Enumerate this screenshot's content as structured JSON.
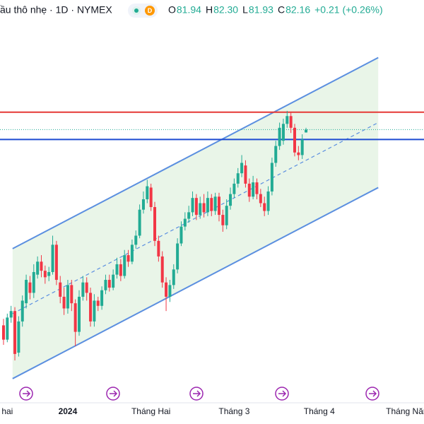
{
  "header": {
    "title": "ầu thô nhẹ · 1D · NYMEX",
    "badge": "D",
    "ohlc": [
      {
        "label": "O",
        "value": "81.94"
      },
      {
        "label": "H",
        "value": "82.30"
      },
      {
        "label": "L",
        "value": "81.93"
      },
      {
        "label": "C",
        "value": "82.16"
      }
    ],
    "change": "+0.21 (+0.26%)"
  },
  "chart_data": {
    "type": "candlestick",
    "open": [
      67.1,
      66.0,
      67.7,
      68.2,
      65.0,
      67.4,
      68.8,
      70.4,
      69.6,
      71.0,
      72.0,
      71.3,
      70.9,
      71.2,
      73.3,
      70.4,
      69.3,
      68.4,
      70.2,
      68.8,
      66.6,
      69.3,
      70.4,
      69.6,
      67.4,
      69.0,
      68.6,
      69.8,
      70.6,
      70.0,
      71.0,
      71.8,
      70.9,
      72.5,
      72.0,
      73.3,
      74.0,
      76.0,
      76.8,
      77.7,
      76.2,
      73.6,
      72.4,
      70.4,
      69.3,
      70.2,
      71.4,
      73.4,
      74.7,
      75.3,
      75.8,
      76.9,
      75.6,
      76.5,
      75.8,
      76.9,
      75.9,
      77.0,
      75.6,
      74.8,
      76.3,
      77.2,
      78.0,
      78.8,
      79.4,
      78.0,
      77.0,
      78.1,
      77.2,
      76.5,
      75.9,
      77.4,
      79.6,
      80.9,
      81.3,
      82.6,
      83.2,
      82.3,
      80.4,
      80.2,
      81.94
    ],
    "high": [
      67.6,
      68.0,
      68.6,
      68.5,
      67.8,
      69.4,
      71.0,
      70.9,
      71.8,
      72.4,
      72.5,
      71.7,
      71.6,
      74.0,
      73.6,
      70.9,
      70.0,
      70.6,
      70.6,
      69.1,
      69.8,
      70.9,
      70.8,
      70.0,
      69.5,
      69.3,
      70.1,
      71.0,
      71.0,
      71.4,
      72.3,
      72.2,
      72.9,
      72.9,
      73.7,
      74.4,
      76.4,
      77.4,
      78.3,
      78.0,
      76.6,
      74.0,
      72.8,
      70.8,
      70.6,
      71.8,
      73.8,
      75.1,
      75.8,
      76.3,
      77.4,
      77.2,
      77.0,
      77.2,
      77.4,
      77.2,
      77.3,
      77.3,
      76.0,
      76.8,
      77.7,
      78.4,
      79.2,
      80.2,
      79.8,
      78.4,
      78.6,
      78.4,
      77.6,
      77.0,
      77.8,
      80.0,
      81.3,
      82.7,
      83.0,
      83.6,
      83.5,
      82.6,
      80.9,
      81.8,
      82.3
    ],
    "low": [
      65.6,
      65.8,
      67.3,
      64.4,
      64.7,
      67.0,
      68.4,
      69.1,
      69.2,
      70.7,
      70.8,
      70.3,
      70.5,
      71.0,
      70.2,
      68.8,
      67.9,
      68.0,
      68.2,
      65.5,
      66.3,
      69.0,
      69.0,
      67.0,
      67.0,
      68.2,
      68.3,
      69.5,
      69.7,
      69.8,
      70.7,
      70.5,
      70.7,
      71.6,
      71.8,
      73.0,
      73.8,
      75.7,
      76.5,
      75.9,
      73.2,
      72.0,
      70.0,
      68.2,
      68.9,
      69.9,
      71.1,
      73.2,
      74.4,
      75.0,
      75.5,
      75.2,
      75.3,
      75.4,
      75.5,
      75.5,
      75.6,
      75.1,
      74.3,
      74.5,
      76.0,
      76.9,
      77.7,
      78.5,
      77.7,
      76.6,
      76.8,
      76.8,
      76.2,
      75.5,
      75.6,
      77.1,
      79.3,
      80.6,
      81.0,
      82.3,
      81.9,
      80.1,
      79.8,
      79.9,
      81.93
    ],
    "close": [
      66.0,
      67.7,
      68.2,
      64.9,
      67.4,
      69.0,
      70.6,
      69.6,
      71.2,
      72.0,
      71.3,
      70.8,
      71.2,
      73.3,
      70.6,
      69.3,
      68.4,
      70.2,
      68.8,
      66.6,
      69.3,
      70.4,
      69.6,
      67.4,
      69.0,
      68.6,
      69.8,
      70.6,
      70.0,
      71.0,
      71.8,
      70.9,
      72.5,
      72.0,
      73.3,
      74.0,
      76.0,
      76.8,
      77.8,
      76.2,
      73.6,
      72.4,
      70.4,
      69.3,
      70.2,
      71.4,
      73.4,
      74.7,
      75.3,
      75.8,
      76.9,
      75.6,
      76.5,
      75.8,
      76.9,
      75.9,
      77.0,
      75.6,
      74.8,
      76.3,
      77.2,
      78.0,
      78.8,
      79.6,
      78.0,
      77.0,
      78.1,
      77.2,
      76.5,
      75.9,
      77.4,
      79.6,
      80.9,
      82.3,
      82.6,
      83.2,
      82.3,
      80.4,
      80.2,
      81.4,
      82.16
    ],
    "up_color": "#22ab94",
    "down_color": "#f23645",
    "xlim": [
      -0.93,
      111.2
    ],
    "ylim": [
      62.5,
      90.5
    ],
    "xticks": [
      {
        "value": 1,
        "label": "hai"
      },
      {
        "value": 17,
        "label": "2024"
      },
      {
        "value": 39,
        "label": "Tháng Hai"
      },
      {
        "value": 61,
        "label": "Tháng 3"
      },
      {
        "value": 83.5,
        "label": "Tháng 4"
      },
      {
        "value": 107,
        "label": "Tháng Năm"
      }
    ],
    "channel": {
      "x": [
        2.4,
        99.1
      ],
      "upper": [
        73.0,
        87.7
      ],
      "lower": [
        63.0,
        77.7
      ],
      "color": "#5b8fe0",
      "fill": "#e4f2e2"
    },
    "levels": [
      {
        "value": 83.5,
        "color": "#e53935",
        "style": "solid"
      },
      {
        "value": 81.4,
        "color": "#1e4bd2",
        "style": "solid"
      },
      {
        "value": 82.16,
        "color": "#22ab94",
        "style": "dotted"
      }
    ]
  }
}
